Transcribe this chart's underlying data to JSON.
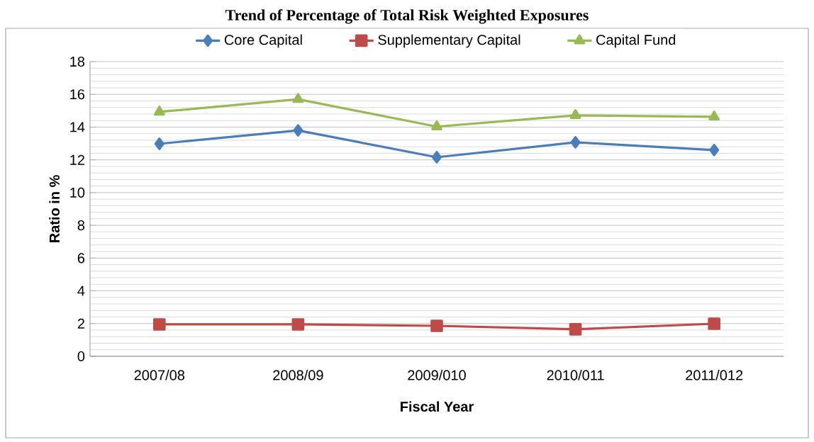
{
  "chart_data": {
    "type": "line",
    "title": "Trend of Percentage of Total Risk Weighted Exposures",
    "xlabel": "Fiscal Year",
    "ylabel": "Ratio in %",
    "categories": [
      "2007/08",
      "2008/09",
      "2009/010",
      "2010/011",
      "2011/012"
    ],
    "series": [
      {
        "name": "Core Capital",
        "color": "#4a7ebb",
        "marker": "diamond",
        "values": [
          12.98,
          13.8,
          12.16,
          13.07,
          12.6
        ]
      },
      {
        "name": "Supplementary Capital",
        "color": "#be4b48",
        "marker": "square",
        "values": [
          1.95,
          1.95,
          1.86,
          1.65,
          1.99
        ]
      },
      {
        "name": "Capital Fund",
        "color": "#98b954",
        "marker": "triangle",
        "values": [
          14.93,
          15.7,
          14.03,
          14.72,
          14.63
        ]
      }
    ],
    "ylim": [
      0,
      18
    ],
    "yticks": [
      0,
      2,
      4,
      6,
      8,
      10,
      12,
      14,
      16,
      18
    ],
    "grid": "y",
    "legend": "top",
    "line_style": "solid"
  }
}
